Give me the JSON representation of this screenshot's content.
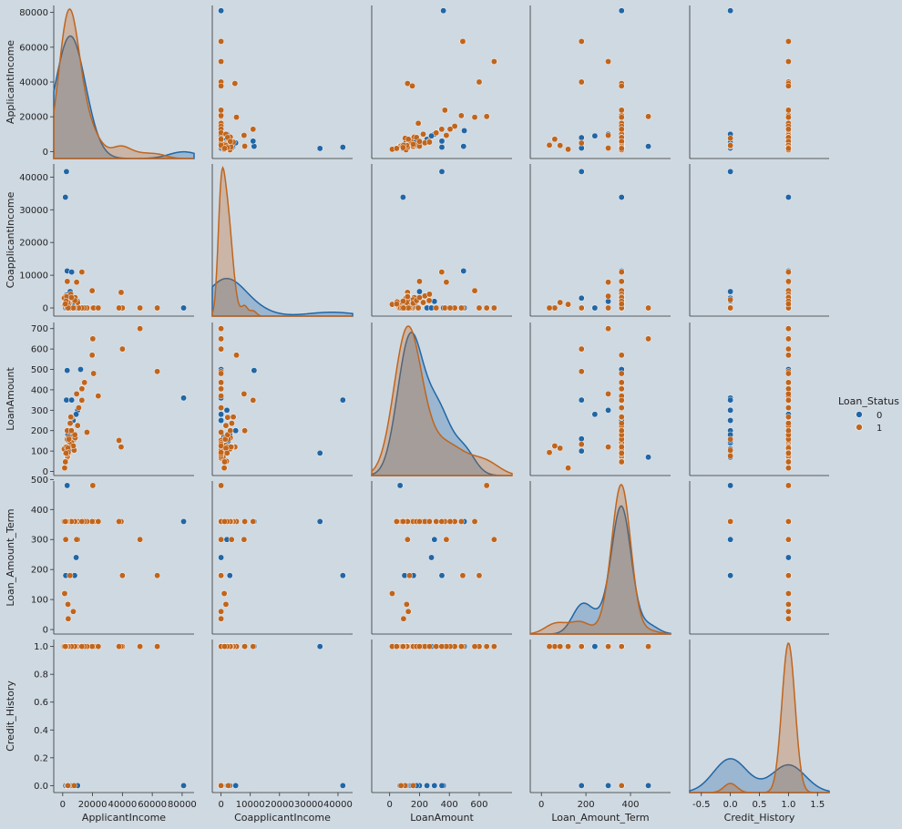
{
  "chart_data": {
    "type": "scatter",
    "subtype": "pairplot",
    "variables": [
      "ApplicantIncome",
      "CoapplicantIncome",
      "LoanAmount",
      "Loan_Amount_Term",
      "Credit_History"
    ],
    "axes": {
      "ApplicantIncome": {
        "lim": [
          -6000,
          88000
        ],
        "ticks": [
          0,
          20000,
          40000,
          60000,
          80000
        ]
      },
      "CoapplicantIncome": {
        "lim": [
          -3000,
          45000
        ],
        "ticks": [
          0,
          10000,
          20000,
          30000,
          40000
        ]
      },
      "LoanAmount": {
        "lim": [
          -120,
          820
        ],
        "ticks": [
          0,
          200,
          400,
          600
        ]
      },
      "Loan_Amount_Term": {
        "lim": [
          -50,
          580
        ],
        "ticks": [
          0,
          200,
          400
        ]
      },
      "Credit_History": {
        "lim": [
          -0.7,
          1.7
        ],
        "ticks": [
          -0.5,
          0.0,
          0.5,
          1.0,
          1.5
        ]
      }
    },
    "yaxes": {
      "ApplicantIncome": {
        "lim": [
          -4000,
          84000
        ],
        "ticks": [
          0,
          20000,
          40000,
          60000,
          80000
        ]
      },
      "CoapplicantIncome": {
        "lim": [
          -2500,
          44000
        ],
        "ticks": [
          0,
          10000,
          20000,
          30000,
          40000
        ]
      },
      "LoanAmount": {
        "lim": [
          -20,
          730
        ],
        "ticks": [
          0,
          100,
          200,
          300,
          400,
          500,
          600,
          700
        ]
      },
      "Loan_Amount_Term": {
        "lim": [
          -15,
          495
        ],
        "ticks": [
          0,
          100,
          200,
          300,
          400,
          500
        ]
      },
      "Credit_History": {
        "lim": [
          -0.05,
          1.05
        ],
        "ticks": [
          0.0,
          0.2,
          0.4,
          0.6,
          0.8,
          1.0
        ]
      }
    },
    "hue": "Loan_Status",
    "series": [
      {
        "name": "0",
        "color": "#2166a5",
        "points": [
          [
            81000,
            0,
            360,
            360,
            0
          ],
          [
            2500,
            41667,
            350,
            180,
            0
          ],
          [
            1800,
            33837,
            90,
            360,
            1
          ],
          [
            3000,
            11300,
            495,
            360,
            1
          ],
          [
            6000,
            10968,
            350,
            360,
            1
          ],
          [
            12000,
            0,
            500,
            360,
            1
          ],
          [
            10000,
            2000,
            300,
            300,
            0
          ],
          [
            5000,
            5000,
            200,
            360,
            0
          ],
          [
            3500,
            3000,
            180,
            360,
            0
          ],
          [
            2000,
            0,
            100,
            180,
            0
          ],
          [
            4000,
            1500,
            130,
            360,
            1
          ],
          [
            7000,
            0,
            250,
            360,
            0
          ],
          [
            8000,
            3000,
            160,
            180,
            1
          ],
          [
            3000,
            0,
            70,
            480,
            0
          ],
          [
            2500,
            4000,
            120,
            360,
            1
          ],
          [
            9000,
            0,
            280,
            240,
            1
          ],
          [
            4500,
            2200,
            140,
            360,
            0
          ],
          [
            6500,
            1000,
            170,
            360,
            1
          ],
          [
            5000,
            0,
            110,
            360,
            0
          ],
          [
            3800,
            2500,
            150,
            360,
            0
          ]
        ]
      },
      {
        "name": "1",
        "color": "#c0651c",
        "points": [
          [
            63337,
            0,
            490,
            180,
            1
          ],
          [
            51763,
            0,
            700,
            300,
            1
          ],
          [
            39999,
            0,
            600,
            180,
            1
          ],
          [
            39147,
            4750,
            120,
            360,
            1
          ],
          [
            37719,
            0,
            152,
            360,
            1
          ],
          [
            20166,
            0,
            650,
            480,
            1
          ],
          [
            20667,
            0,
            480,
            360,
            1
          ],
          [
            19730,
            5266,
            570,
            360,
            1
          ],
          [
            23803,
            0,
            370,
            360,
            1
          ],
          [
            16250,
            0,
            192,
            360,
            1
          ],
          [
            14583,
            0,
            436,
            360,
            1
          ],
          [
            12876,
            0,
            405,
            360,
            1
          ],
          [
            10750,
            0,
            312,
            360,
            1
          ],
          [
            10000,
            1666,
            225,
            360,
            1
          ],
          [
            9323,
            7873,
            380,
            300,
            1
          ],
          [
            8333,
            3167,
            165,
            360,
            1
          ],
          [
            7660,
            0,
            104,
            360,
            0
          ],
          [
            6000,
            2250,
            265,
            360,
            1
          ],
          [
            5000,
            3667,
            236,
            360,
            1
          ],
          [
            4583,
            1508,
            128,
            360,
            1
          ],
          [
            3000,
            0,
            66,
            360,
            1
          ],
          [
            2583,
            2358,
            120,
            360,
            1
          ],
          [
            6000,
            0,
            141,
            360,
            1
          ],
          [
            2333,
            1516,
            95,
            360,
            1
          ],
          [
            3036,
            2504,
            158,
            360,
            0
          ],
          [
            4006,
            1526,
            168,
            360,
            1
          ],
          [
            12841,
            10968,
            349,
            360,
            1
          ],
          [
            3200,
            700,
            70,
            360,
            1
          ],
          [
            2500,
            1840,
            109,
            360,
            1
          ],
          [
            3073,
            8106,
            200,
            360,
            1
          ],
          [
            1853,
            2840,
            114,
            360,
            1
          ],
          [
            1299,
            1086,
            17,
            120,
            1
          ],
          [
            4950,
            0,
            125,
            360,
            1
          ],
          [
            3510,
            0,
            76,
            360,
            0
          ],
          [
            4887,
            0,
            133,
            180,
            1
          ],
          [
            2600,
            3500,
            115,
            360,
            1
          ],
          [
            7100,
            0,
            125,
            60,
            1
          ],
          [
            3167,
            0,
            74,
            360,
            1
          ],
          [
            2000,
            3600,
            120,
            300,
            1
          ],
          [
            5417,
            4196,
            267,
            360,
            1
          ],
          [
            1000,
            3022,
            110,
            360,
            1
          ],
          [
            3750,
            2083,
            120,
            360,
            1
          ],
          [
            4167,
            1447,
            158,
            360,
            1
          ],
          [
            2645,
            3440,
            120,
            360,
            1
          ],
          [
            3500,
            1667,
            114,
            84,
            1
          ],
          [
            8080,
            2250,
            180,
            360,
            1
          ],
          [
            5833,
            3167,
            200,
            360,
            1
          ],
          [
            1926,
            1851,
            50,
            360,
            1
          ],
          [
            2917,
            0,
            84,
            360,
            1
          ],
          [
            3692,
            0,
            93,
            36,
            1
          ],
          [
            2275,
            2067,
            90,
            360,
            1
          ],
          [
            1800,
            1213,
            47,
            360,
            1
          ]
        ]
      }
    ],
    "legend_placement": "right",
    "grid": false
  }
}
